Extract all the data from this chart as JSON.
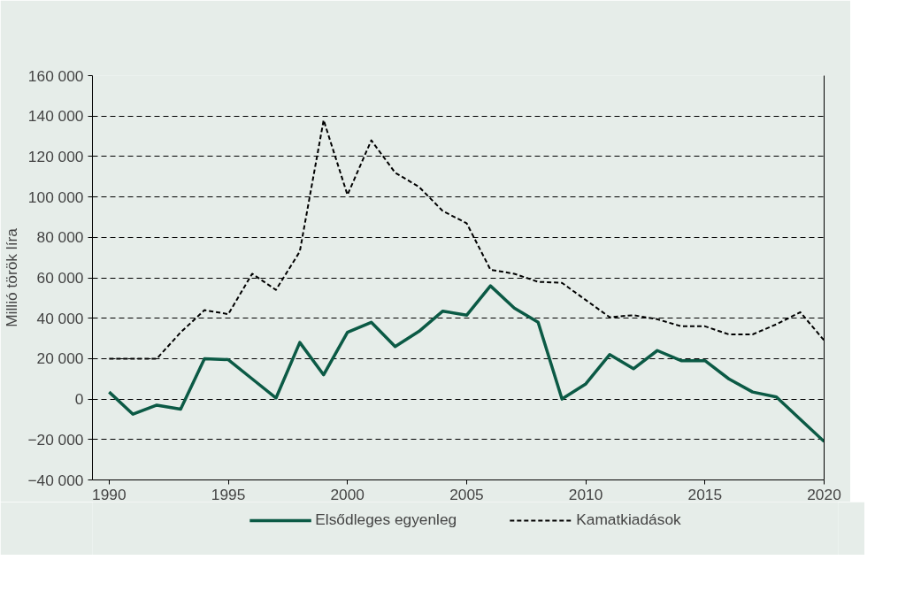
{
  "chart_data": {
    "type": "line",
    "ylabel": "Millió török líra",
    "x": [
      1990,
      1991,
      1992,
      1993,
      1994,
      1995,
      1996,
      1997,
      1998,
      1999,
      2000,
      2001,
      2002,
      2003,
      2004,
      2005,
      2006,
      2007,
      2008,
      2009,
      2010,
      2011,
      2012,
      2013,
      2014,
      2015,
      2016,
      2017,
      2018,
      2019,
      2020
    ],
    "series": [
      {
        "name": "Elsődleges egyenleg",
        "color": "#0b5a45",
        "line_style": "solid",
        "values": [
          3500,
          -7500,
          -3000,
          -5000,
          20000,
          19500,
          10000,
          500,
          28000,
          12000,
          33000,
          38000,
          26000,
          33500,
          43500,
          41500,
          56000,
          45000,
          38000,
          0,
          7500,
          22000,
          15000,
          24000,
          19000,
          19000,
          10000,
          3500,
          1000,
          -10000,
          -21000
        ]
      },
      {
        "name": "Kamatkiadások",
        "color": "#000000",
        "line_style": "dashed",
        "values": [
          20000,
          20000,
          20000,
          33000,
          44000,
          42000,
          62000,
          54000,
          73000,
          138000,
          101000,
          128000,
          112000,
          105000,
          93000,
          87000,
          64000,
          62000,
          58000,
          57500,
          49000,
          40500,
          41500,
          39500,
          36000,
          36000,
          32000,
          32000,
          37000,
          43000,
          29000
        ]
      }
    ],
    "xlim": [
      1989.3,
      2020
    ],
    "xticks": [
      1990,
      1995,
      2000,
      2005,
      2010,
      2015,
      2020
    ],
    "ylim": [
      -40000,
      160000
    ],
    "yticks": [
      {
        "value": -40000,
        "label": "−40 000"
      },
      {
        "value": -20000,
        "label": "−20 000"
      },
      0,
      {
        "value": 20000,
        "label": "20 000"
      },
      {
        "value": 40000,
        "label": "40 000"
      },
      {
        "value": 60000,
        "label": "60 000"
      },
      {
        "value": 80000,
        "label": "80 000"
      },
      {
        "value": 100000,
        "label": "100 000"
      },
      {
        "value": 120000,
        "label": "120 000"
      },
      {
        "value": 140000,
        "label": "140 000"
      },
      {
        "value": 160000,
        "label": "160 000"
      }
    ],
    "grid": "y",
    "legend": "bottom",
    "marker": "none"
  }
}
